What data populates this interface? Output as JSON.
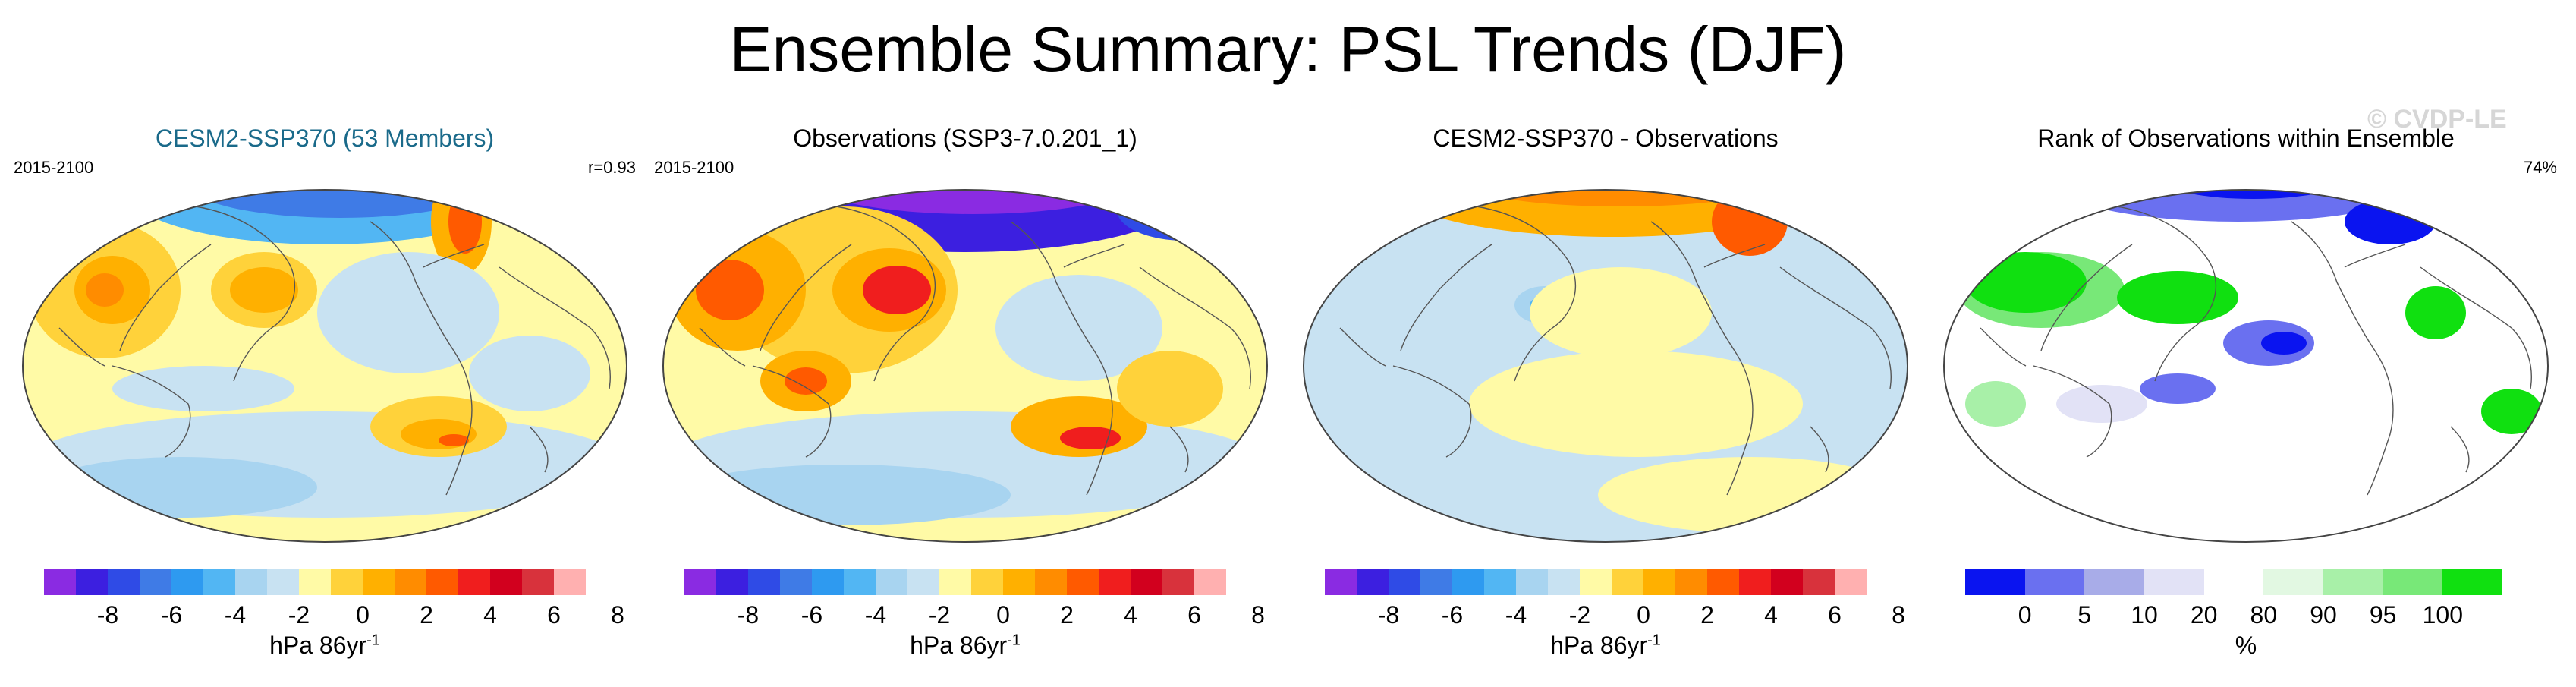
{
  "title": "Ensemble Summary: PSL Trends (DJF)",
  "watermark": "© CVDP-LE",
  "panels": [
    {
      "title": "CESM2-SSP370 (53 Members)",
      "left_label": "2015-2100",
      "right_label": "r=0.93",
      "kind": "trend-model"
    },
    {
      "title": "Observations (SSP3-7.0.201_1)",
      "left_label": "2015-2100",
      "right_label": "",
      "kind": "trend-obs"
    },
    {
      "title": "CESM2-SSP370 - Observations",
      "left_label": "",
      "right_label": "",
      "kind": "difference"
    },
    {
      "title": "Rank of Observations within Ensemble",
      "left_label": "",
      "right_label": "74%",
      "kind": "rank"
    }
  ],
  "colorbar_trend": {
    "colors": [
      "#8a2be2",
      "#3c1fe0",
      "#2f4be6",
      "#3f7be6",
      "#2e9af0",
      "#52b6f3",
      "#a8d4f0",
      "#c8e2f2",
      "#fffaa6",
      "#ffd23a",
      "#ffb000",
      "#ff8c00",
      "#ff5a00",
      "#f01e1e",
      "#d2001e",
      "#d8323c",
      "#ffb0b0"
    ],
    "ticks": [
      "-8",
      "-6",
      "-4",
      "-2",
      "0",
      "2",
      "4",
      "6",
      "8"
    ],
    "unit_base": "hPa 86yr",
    "unit_exp": "-1"
  },
  "colorbar_rank": {
    "colors": [
      "#0a14f0",
      "#6a70f0",
      "#a8ace8",
      "#e2e2f6",
      "#ffffff",
      "#e2f8e2",
      "#a8f0a8",
      "#78e878",
      "#10e010"
    ],
    "ticks": [
      "0",
      "5",
      "10",
      "20",
      "80",
      "90",
      "95",
      "100"
    ],
    "unit": "%"
  },
  "chart_data": {
    "type": "heatmap",
    "title": "Ensemble Summary: PSL Trends (DJF)",
    "period": "2015-2100",
    "pattern_correlation": 0.93,
    "rank_summary_percent": 74,
    "trend_colorbar_ticks": [
      -8,
      -6,
      -4,
      -2,
      0,
      2,
      4,
      6,
      8
    ],
    "trend_units": "hPa 86yr-1",
    "rank_colorbar_ticks": [
      0,
      5,
      10,
      20,
      80,
      90,
      95,
      100
    ],
    "rank_units": "%"
  }
}
